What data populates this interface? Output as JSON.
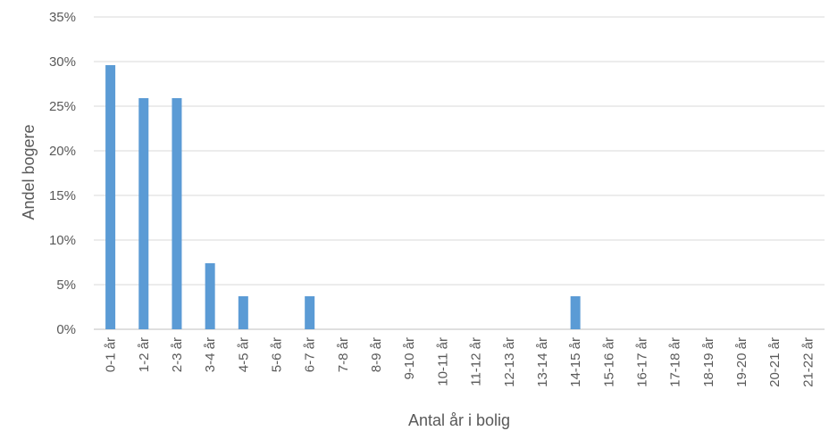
{
  "chart_data": {
    "type": "bar",
    "title": "",
    "xlabel": "Antal år i bolig",
    "ylabel": "Andel bogere",
    "ylim": [
      0,
      35
    ],
    "yticks": [
      {
        "value": 0,
        "label": "0%"
      },
      {
        "value": 5,
        "label": "5%"
      },
      {
        "value": 10,
        "label": "10%"
      },
      {
        "value": 15,
        "label": "15%"
      },
      {
        "value": 20,
        "label": "20%"
      },
      {
        "value": 25,
        "label": "25%"
      },
      {
        "value": 30,
        "label": "30%"
      },
      {
        "value": 35,
        "label": "35%"
      }
    ],
    "grid": true,
    "legend": "none",
    "bar_color": "#5B9BD5",
    "categories": [
      "0-1 år",
      "1-2 år",
      "2-3 år",
      "3-4 år",
      "4-5 år",
      "5-6 år",
      "6-7 år",
      "7-8 år",
      "8-9 år",
      "9-10 år",
      "10-11 år",
      "11-12 år",
      "12-13 år",
      "13-14 år",
      "14-15 år",
      "15-16 år",
      "16-17 år",
      "17-18 år",
      "18-19 år",
      "19-20 år",
      "20-21 år",
      "21-22 år"
    ],
    "values": [
      29.6,
      25.9,
      25.9,
      7.4,
      3.7,
      0,
      3.7,
      0,
      0,
      0,
      0,
      0,
      0,
      0,
      3.7,
      0,
      0,
      0,
      0,
      0,
      0,
      0
    ]
  }
}
